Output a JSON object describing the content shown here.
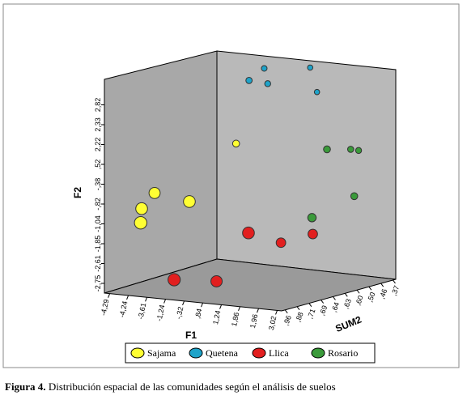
{
  "chart_data": {
    "type": "scatter3d",
    "axes": {
      "x": {
        "label": "F1",
        "ticks": [
          "-4,29",
          "-4,24",
          "-3,61",
          "-1,24",
          "-,32",
          ",84",
          "1,24",
          "1,86",
          "1,96",
          "3,02"
        ]
      },
      "y": {
        "label": "F2",
        "ticks": [
          "-2,75",
          "-2,61",
          "-1,85",
          "-1,04",
          "-,82",
          "-,38",
          ",52",
          "2,22",
          "2,33",
          "2,82"
        ]
      },
      "z": {
        "label": "SUM2",
        "ticks": [
          ",96",
          ",88",
          ",71",
          ",69",
          ",64",
          ",63",
          ",60",
          ",50",
          ",46",
          ",37"
        ]
      }
    },
    "legend_position": "bottom",
    "series": [
      {
        "name": "Sajama",
        "color": "#ffff33",
        "points": [
          {
            "f1": -3.6,
            "f2": -0.6,
            "sum2": 0.9
          },
          {
            "f1": -3.2,
            "f2": -0.9,
            "sum2": 0.96
          },
          {
            "f1": -3.4,
            "f2": -0.2,
            "sum2": 0.85
          },
          {
            "f1": -1.5,
            "f2": -0.25,
            "sum2": 0.9
          },
          {
            "f1": -2.4,
            "f2": 0.8,
            "sum2": 0.5
          }
        ]
      },
      {
        "name": "Quetena",
        "color": "#1ea3c9",
        "points": [
          {
            "f1": -2.2,
            "f2": 2.6,
            "sum2": 0.45
          },
          {
            "f1": -1.9,
            "f2": 2.9,
            "sum2": 0.4
          },
          {
            "f1": -1.6,
            "f2": 2.5,
            "sum2": 0.42
          },
          {
            "f1": 0.2,
            "f2": 2.3,
            "sum2": 0.37
          },
          {
            "f1": -0.1,
            "f2": 3.0,
            "sum2": 0.37
          }
        ]
      },
      {
        "name": "Llica",
        "color": "#e21f1f",
        "points": [
          {
            "f1": -1.8,
            "f2": -2.5,
            "sum2": 0.95
          },
          {
            "f1": -0.6,
            "f2": -2.6,
            "sum2": 0.86
          },
          {
            "f1": 1.2,
            "f2": -1.55,
            "sum2": 0.72
          },
          {
            "f1": 1.1,
            "f2": -1.0,
            "sum2": 0.9
          },
          {
            "f1": 2.6,
            "f2": -1.2,
            "sum2": 0.72
          }
        ]
      },
      {
        "name": "Rosario",
        "color": "#3a9a3a",
        "points": [
          {
            "f1": 1.6,
            "f2": 0.9,
            "sum2": 0.5
          },
          {
            "f1": 2.4,
            "f2": 0.8,
            "sum2": 0.42
          },
          {
            "f1": 2.2,
            "f2": 0.85,
            "sum2": 0.44
          },
          {
            "f1": 2.8,
            "f2": -0.4,
            "sum2": 0.5
          },
          {
            "f1": 1.9,
            "f2": -0.9,
            "sum2": 0.63
          }
        ]
      }
    ]
  },
  "caption": {
    "label": "Figura 4.",
    "text": " Distribución espacial de las comunidades según el análisis de suelos"
  }
}
